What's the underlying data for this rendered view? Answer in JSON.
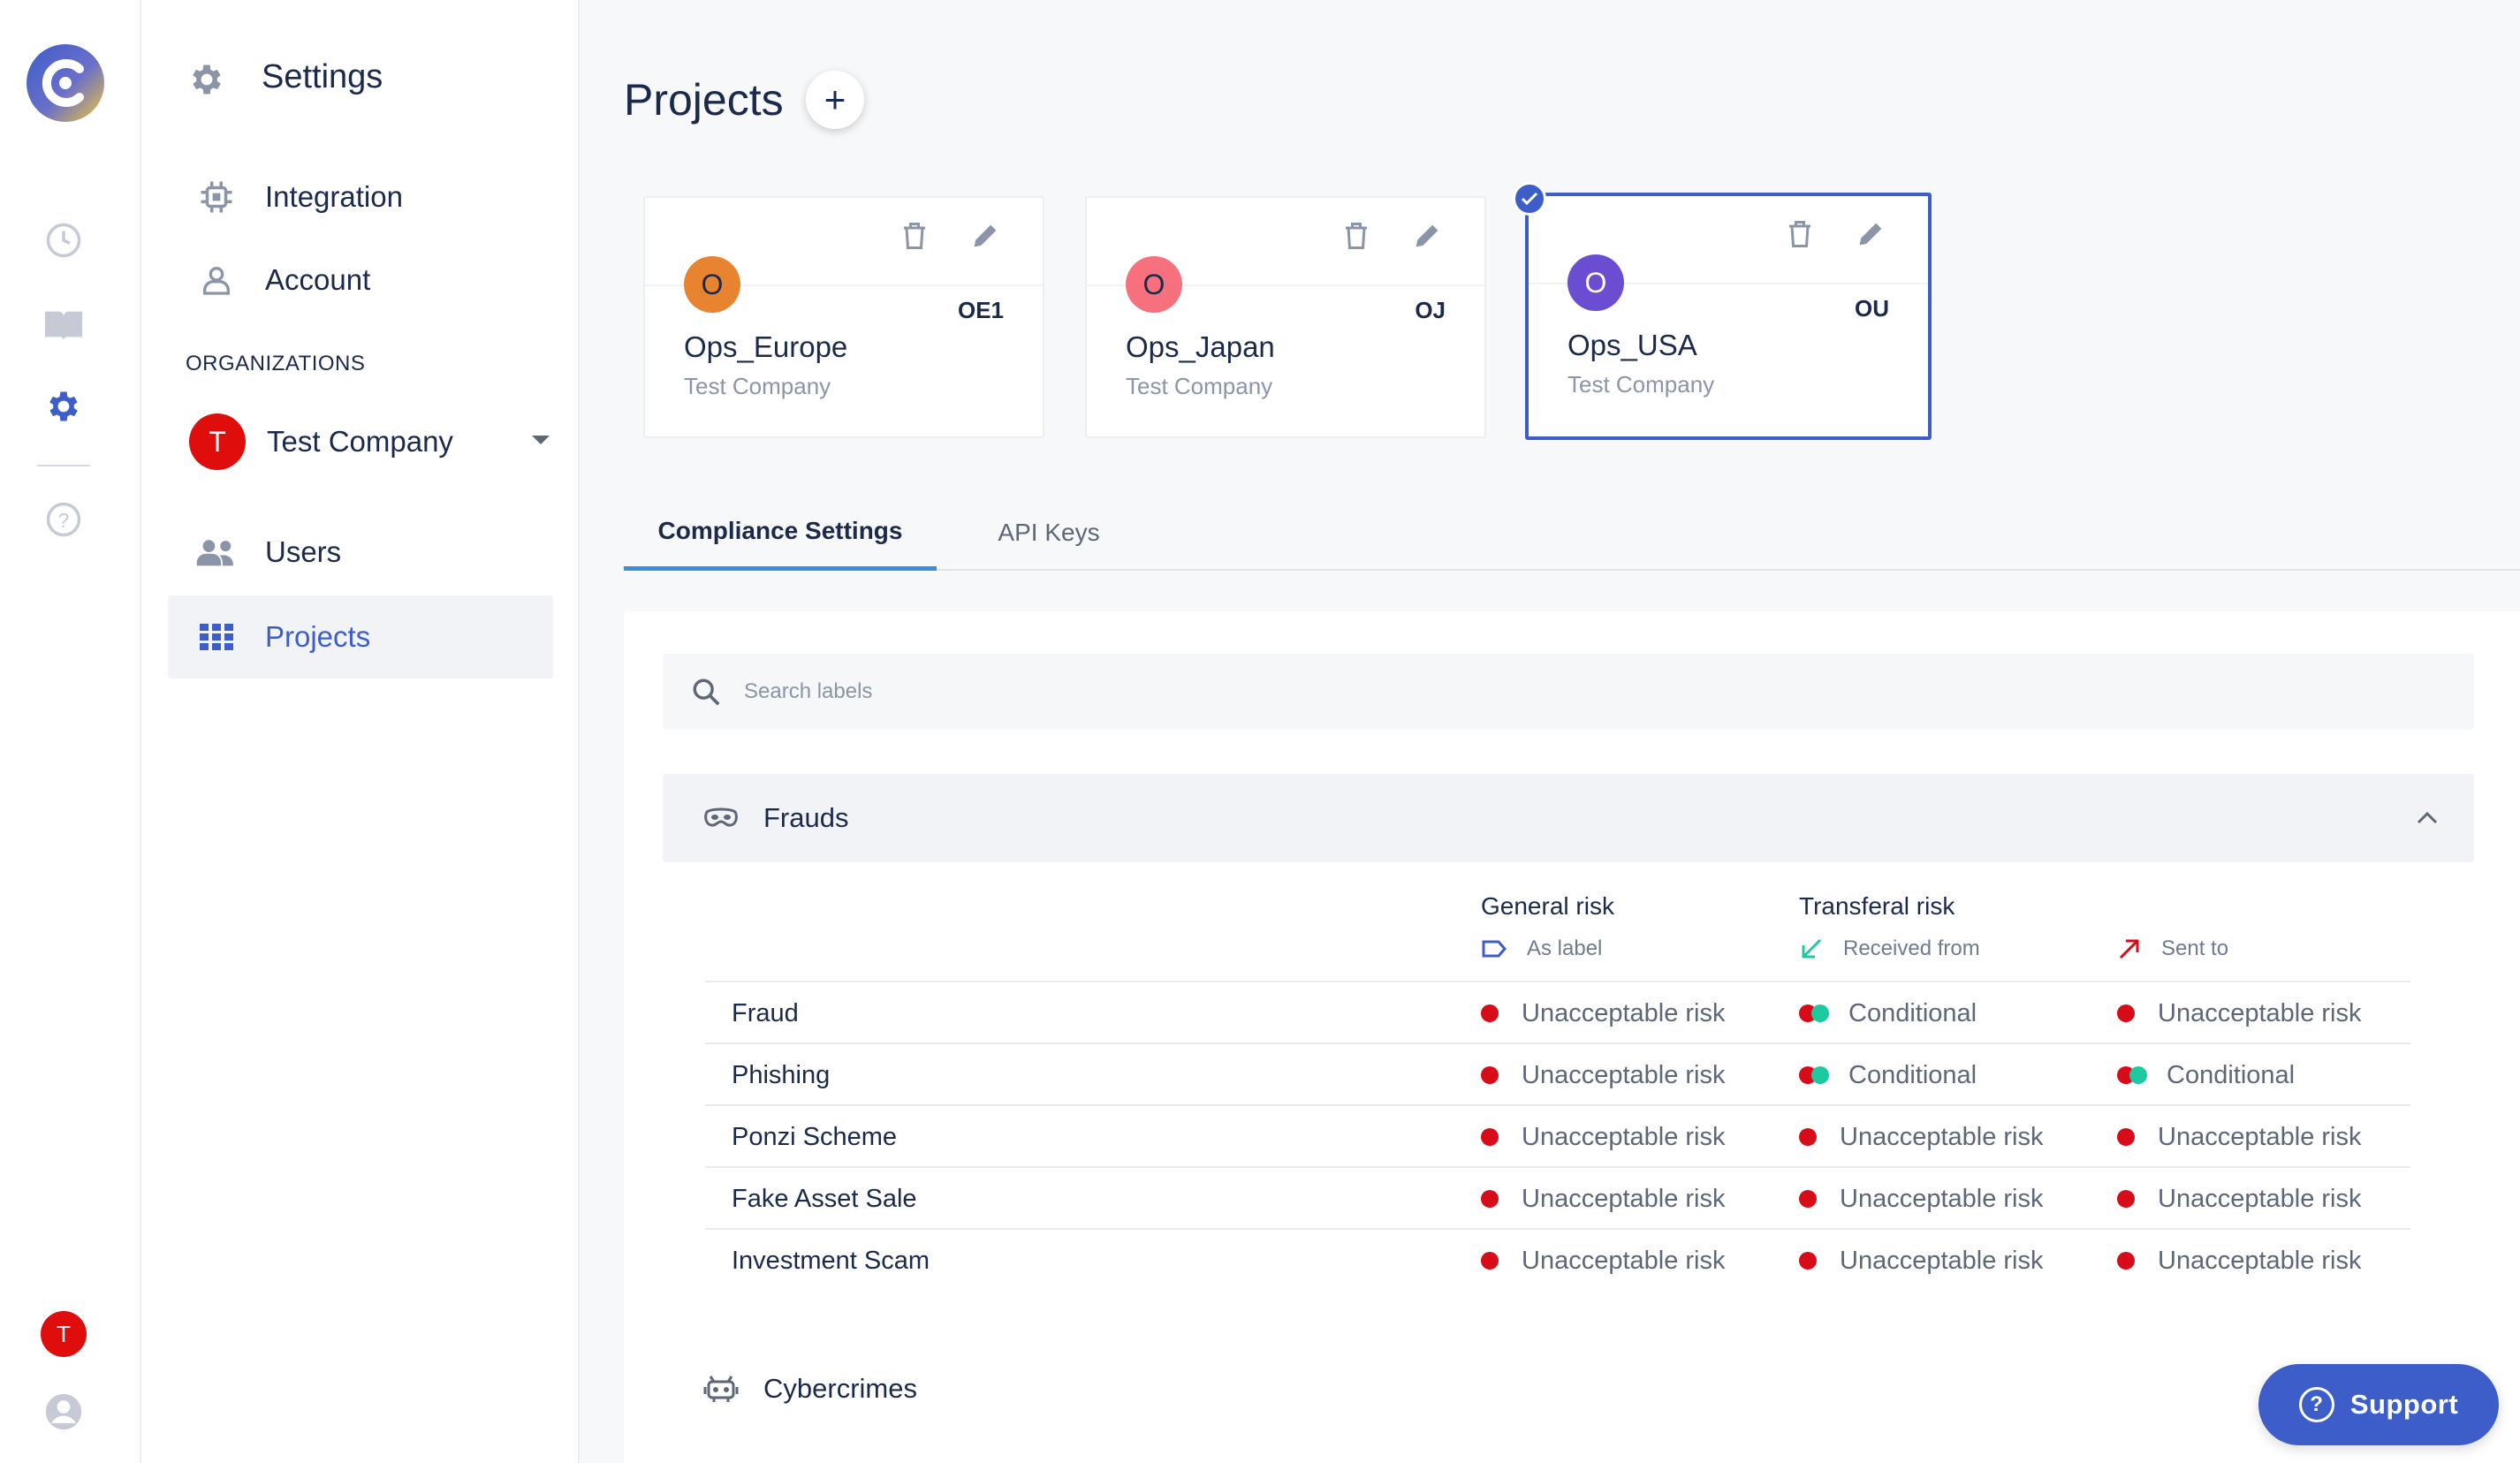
{
  "rail": {
    "user_initial": "T"
  },
  "sidebar": {
    "title": "Settings",
    "items": [
      {
        "label": "Integration",
        "icon": "chip-icon"
      },
      {
        "label": "Account",
        "icon": "person-icon"
      }
    ],
    "organizations_label": "ORGANIZATIONS",
    "org": {
      "initial": "T",
      "name": "Test Company"
    },
    "org_items": [
      {
        "label": "Users",
        "icon": "users-icon"
      },
      {
        "label": "Projects",
        "icon": "grid-icon",
        "active": true
      }
    ]
  },
  "main": {
    "title": "Projects",
    "add_label": "+",
    "projects": [
      {
        "initial": "O",
        "name": "Ops_Europe",
        "company": "Test Company",
        "code": "OE1",
        "color": "#e8832f",
        "selected": false
      },
      {
        "initial": "O",
        "name": "Ops_Japan",
        "company": "Test Company",
        "code": "OJ",
        "color": "#f7707e",
        "selected": false
      },
      {
        "initial": "O",
        "name": "Ops_USA",
        "company": "Test Company",
        "code": "OU",
        "color": "#6a4dd1",
        "selected": true
      }
    ],
    "tabs": [
      {
        "label": "Compliance Settings",
        "active": true
      },
      {
        "label": "API Keys",
        "active": false
      }
    ],
    "search_placeholder": "Search labels",
    "category": "Frauds",
    "columns": {
      "general": "General risk",
      "transferal": "Transferal risk",
      "as_label": "As label",
      "received": "Received from",
      "sent": "Sent to"
    },
    "rules": [
      {
        "name": "Fraud",
        "general": "Unacceptable risk",
        "received": "Conditional",
        "sent": "Unacceptable risk"
      },
      {
        "name": "Phishing",
        "general": "Unacceptable risk",
        "received": "Conditional",
        "sent": "Conditional"
      },
      {
        "name": "Ponzi Scheme",
        "general": "Unacceptable risk",
        "received": "Unacceptable risk",
        "sent": "Unacceptable risk"
      },
      {
        "name": "Fake Asset Sale",
        "general": "Unacceptable risk",
        "received": "Unacceptable risk",
        "sent": "Unacceptable risk"
      },
      {
        "name": "Investment Scam",
        "general": "Unacceptable risk",
        "received": "Unacceptable risk",
        "sent": "Unacceptable risk"
      }
    ],
    "category2": "Cybercrimes"
  },
  "support": {
    "label": "Support"
  },
  "colors": {
    "accent": "#3d5ec9",
    "unacceptable": "#d80c18",
    "conditional_green": "#1fc9a0"
  }
}
